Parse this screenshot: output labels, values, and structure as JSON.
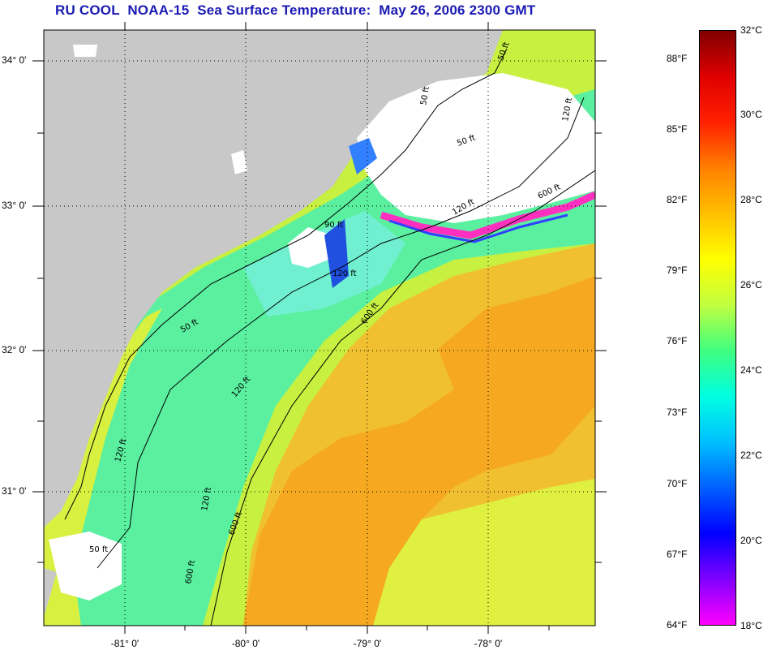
{
  "title": "RU COOL  NOAA-15  Sea Surface Temperature:  May 26, 2006 2300 GMT",
  "map": {
    "lat_labels": [
      "34° 0'",
      "33° 0'",
      "32° 0'",
      "31° 0'"
    ],
    "lon_labels": [
      "-81° 0'",
      "-80° 0'",
      "-79° 0'",
      "-78° 0'"
    ],
    "contour_labels": [
      "50 ft",
      "50 ft",
      "50 ft",
      "120 ft",
      "120 ft",
      "120 ft",
      "120 ft",
      "120 ft",
      "120 ft",
      "600 ft",
      "600 ft",
      "600 ft",
      "600 ft",
      "90 ft",
      "50 ft",
      "50 ft"
    ]
  },
  "colorbar": {
    "fahrenheit_labels": [
      "88°F",
      "85°F",
      "82°F",
      "79°F",
      "76°F",
      "73°F",
      "70°F",
      "67°F",
      "64°F"
    ],
    "celsius_labels": [
      "32°C",
      "30°C",
      "28°C",
      "26°C",
      "24°C",
      "22°C",
      "20°C",
      "18°C"
    ],
    "stops": [
      "#800000",
      "#e00000",
      "#ff2000",
      "#ff8000",
      "#ffc000",
      "#ffff00",
      "#c0ff40",
      "#40ff80",
      "#00ffe0",
      "#00c0ff",
      "#0060ff",
      "#0000ff",
      "#8000ff",
      "#ff00ff"
    ]
  },
  "colors": {
    "land": "#c8c8c8",
    "cloud": "#ffffff",
    "title": "#1a1ab4",
    "warm_water": "#f5b020",
    "shelf_water": "#a8f060",
    "cool_water": "#50f0a0"
  }
}
